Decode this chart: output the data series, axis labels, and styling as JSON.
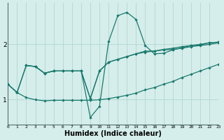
{
  "xlabel": "Humidex (Indice chaleur)",
  "background_color": "#d5eeeb",
  "grid_color": "#b8d8d4",
  "line_color": "#1a7a6e",
  "x_ticks": [
    0,
    1,
    2,
    3,
    4,
    5,
    6,
    7,
    8,
    9,
    10,
    11,
    12,
    13,
    14,
    15,
    16,
    17,
    18,
    19,
    20,
    21,
    22,
    23
  ],
  "y_ticks": [
    1,
    2
  ],
  "xlim": [
    0,
    23
  ],
  "ylim": [
    0.55,
    2.75
  ],
  "line1_x": [
    0,
    1,
    2,
    3,
    4,
    5,
    6,
    7,
    8,
    9,
    10,
    11,
    12,
    13,
    14,
    15,
    16,
    17,
    18,
    19,
    20,
    21,
    22,
    23
  ],
  "line1_y": [
    1.28,
    1.13,
    1.62,
    1.6,
    1.48,
    1.52,
    1.52,
    1.52,
    1.52,
    0.68,
    0.88,
    2.05,
    2.52,
    2.58,
    2.45,
    1.98,
    1.83,
    1.84,
    1.9,
    1.94,
    1.98,
    1.99,
    2.03,
    2.04
  ],
  "line2_x": [
    0,
    1,
    2,
    3,
    4,
    5,
    6,
    7,
    8,
    9,
    10,
    11,
    12,
    13,
    14,
    15,
    16,
    17,
    18,
    19,
    20,
    21,
    22,
    23
  ],
  "line2_y": [
    1.28,
    1.13,
    1.62,
    1.6,
    1.48,
    1.52,
    1.52,
    1.52,
    1.52,
    1.02,
    1.52,
    1.68,
    1.73,
    1.78,
    1.83,
    1.88,
    1.88,
    1.91,
    1.93,
    1.96,
    1.98,
    2.0,
    2.03,
    2.04
  ],
  "line3_x": [
    2,
    3,
    4,
    5,
    6,
    7,
    8,
    9,
    10,
    11,
    12,
    13,
    14,
    15,
    16,
    17,
    18,
    19,
    20,
    21,
    22,
    23
  ],
  "line3_y": [
    1.62,
    1.6,
    1.48,
    1.52,
    1.52,
    1.52,
    1.52,
    1.02,
    1.52,
    1.68,
    1.73,
    1.78,
    1.83,
    1.86,
    1.88,
    1.9,
    1.91,
    1.93,
    1.96,
    1.98,
    2.0,
    2.03
  ],
  "line4_x": [
    0,
    1,
    2,
    3,
    4,
    5,
    6,
    7,
    8,
    9,
    10,
    11,
    12,
    13,
    14,
    15,
    16,
    17,
    18,
    19,
    20,
    21,
    22,
    23
  ],
  "line4_y": [
    1.28,
    1.13,
    1.04,
    1.0,
    0.98,
    0.99,
    0.99,
    0.99,
    0.99,
    0.99,
    1.0,
    1.02,
    1.05,
    1.08,
    1.12,
    1.18,
    1.22,
    1.28,
    1.33,
    1.4,
    1.46,
    1.52,
    1.58,
    1.64
  ]
}
